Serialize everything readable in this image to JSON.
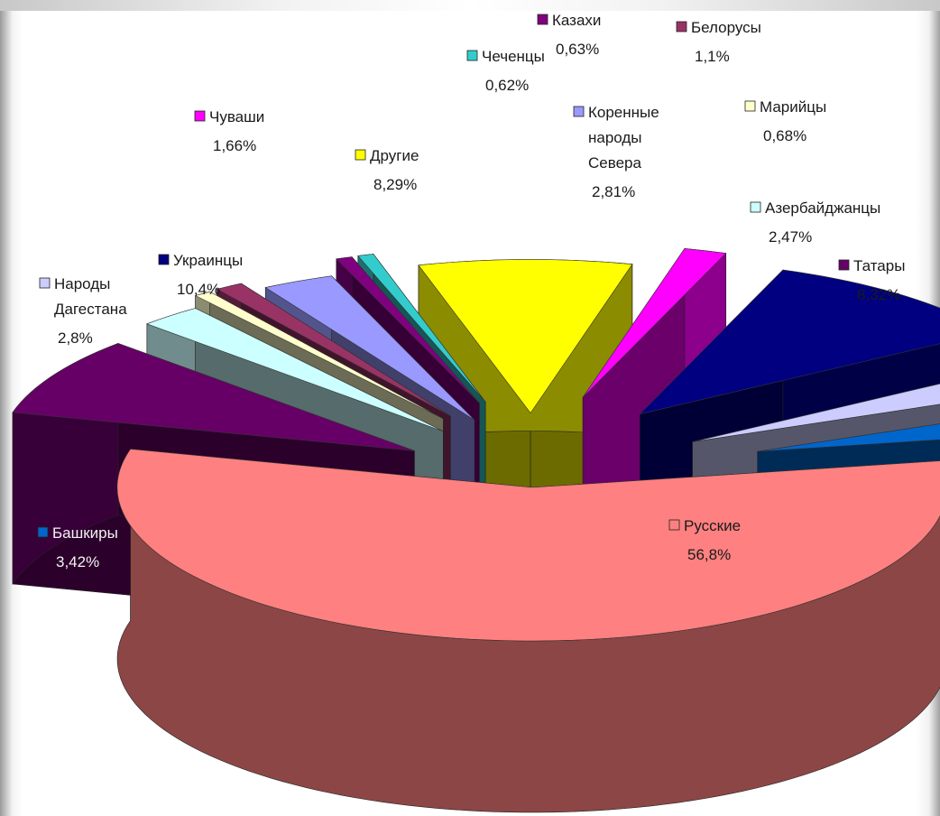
{
  "chart_data": {
    "type": "pie",
    "title": "",
    "legend": "none",
    "slices": [
      {
        "label": "Русские",
        "value_label": "56,8%",
        "value": 56.8,
        "color": "#ff8080"
      },
      {
        "label": "Татары",
        "value_label": "8,32%",
        "value": 8.32,
        "color": "#660066"
      },
      {
        "label": "Азербайджанцы",
        "value_label": "2,47%",
        "value": 2.47,
        "color": "#ccffff"
      },
      {
        "label": "Марийцы",
        "value_label": "0,68%",
        "value": 0.68,
        "color": "#ffffcc"
      },
      {
        "label": "Белорусы",
        "value_label": "1,1%",
        "value": 1.1,
        "color": "#993366"
      },
      {
        "label": "Коренные народы Севера",
        "value_label": "2,81%",
        "value": 2.81,
        "color": "#9999ff"
      },
      {
        "label": "Казахи",
        "value_label": "0,63%",
        "value": 0.63,
        "color": "#800080"
      },
      {
        "label": "Чеченцы",
        "value_label": "0,62%",
        "value": 0.62,
        "color": "#33cccc"
      },
      {
        "label": "Другие",
        "value_label": "8,29%",
        "value": 8.29,
        "color": "#ffff00"
      },
      {
        "label": "Чуваши",
        "value_label": "1,66%",
        "value": 1.66,
        "color": "#ff00ff"
      },
      {
        "label": "Украинцы",
        "value_label": "10,4%",
        "value": 10.4,
        "color": "#000080"
      },
      {
        "label": "Народы Дагестана",
        "value_label": "2,8%",
        "value": 2.8,
        "color": "#ccccff"
      },
      {
        "label": "Башкиры",
        "value_label": "3,42%",
        "value": 3.42,
        "color": "#0066cc"
      }
    ]
  }
}
